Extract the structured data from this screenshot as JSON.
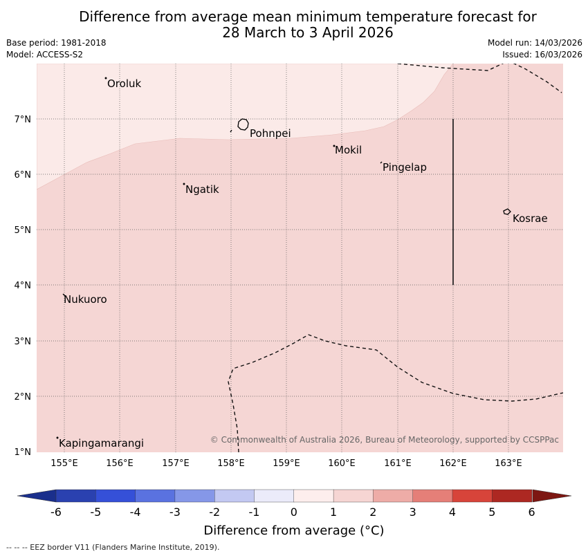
{
  "title": {
    "line1": "Difference from average mean minimum temperature forecast for",
    "line2": "28 March to 3 April 2026"
  },
  "meta": {
    "base_period": "Base period: 1981-2018",
    "model": "Model: ACCESS-S2",
    "model_run": "Model run: 14/03/2026",
    "issued": "Issued: 16/03/2026"
  },
  "map": {
    "lon_labels": [
      "155°E",
      "156°E",
      "157°E",
      "158°E",
      "159°E",
      "160°E",
      "161°E",
      "162°E",
      "163°E"
    ],
    "lat_labels": [
      "7°N",
      "6°N",
      "5°N",
      "4°N",
      "3°N",
      "2°N",
      "1°N"
    ],
    "places": {
      "oroluk": "Oroluk",
      "pohnpei": "Pohnpei",
      "mokil": "Mokil",
      "pingelap": "Pingelap",
      "ngatik": "Ngatik",
      "kosrae": "Kosrae",
      "nukuoro": "Nukuoro",
      "kapingamarangi": "Kapingamarangi"
    },
    "copyright": "© Commonwealth of Australia 2026, Bureau of Meteorology, supported by CCSPPac",
    "colors": {
      "band_0_1": "#fbeae8",
      "band_1_2": "#f5d6d4"
    }
  },
  "colorbar": {
    "ticks": [
      "-6",
      "-5",
      "-4",
      "-3",
      "-2",
      "-1",
      "0",
      "1",
      "2",
      "3",
      "4",
      "5",
      "6"
    ],
    "label": "Difference from average (°C)",
    "colors": [
      "#1a2f8c",
      "#2a41b0",
      "#3550d8",
      "#5a72e0",
      "#8597e8",
      "#c3c9f2",
      "#ebebfa",
      "#fdeeed",
      "#f6d5d3",
      "#eeaca7",
      "#e57f78",
      "#d7443a",
      "#ad2822",
      "#7d1712"
    ]
  },
  "footer": "--  --  -- EEZ border V11 (Flanders Marine Institute, 2019)."
}
